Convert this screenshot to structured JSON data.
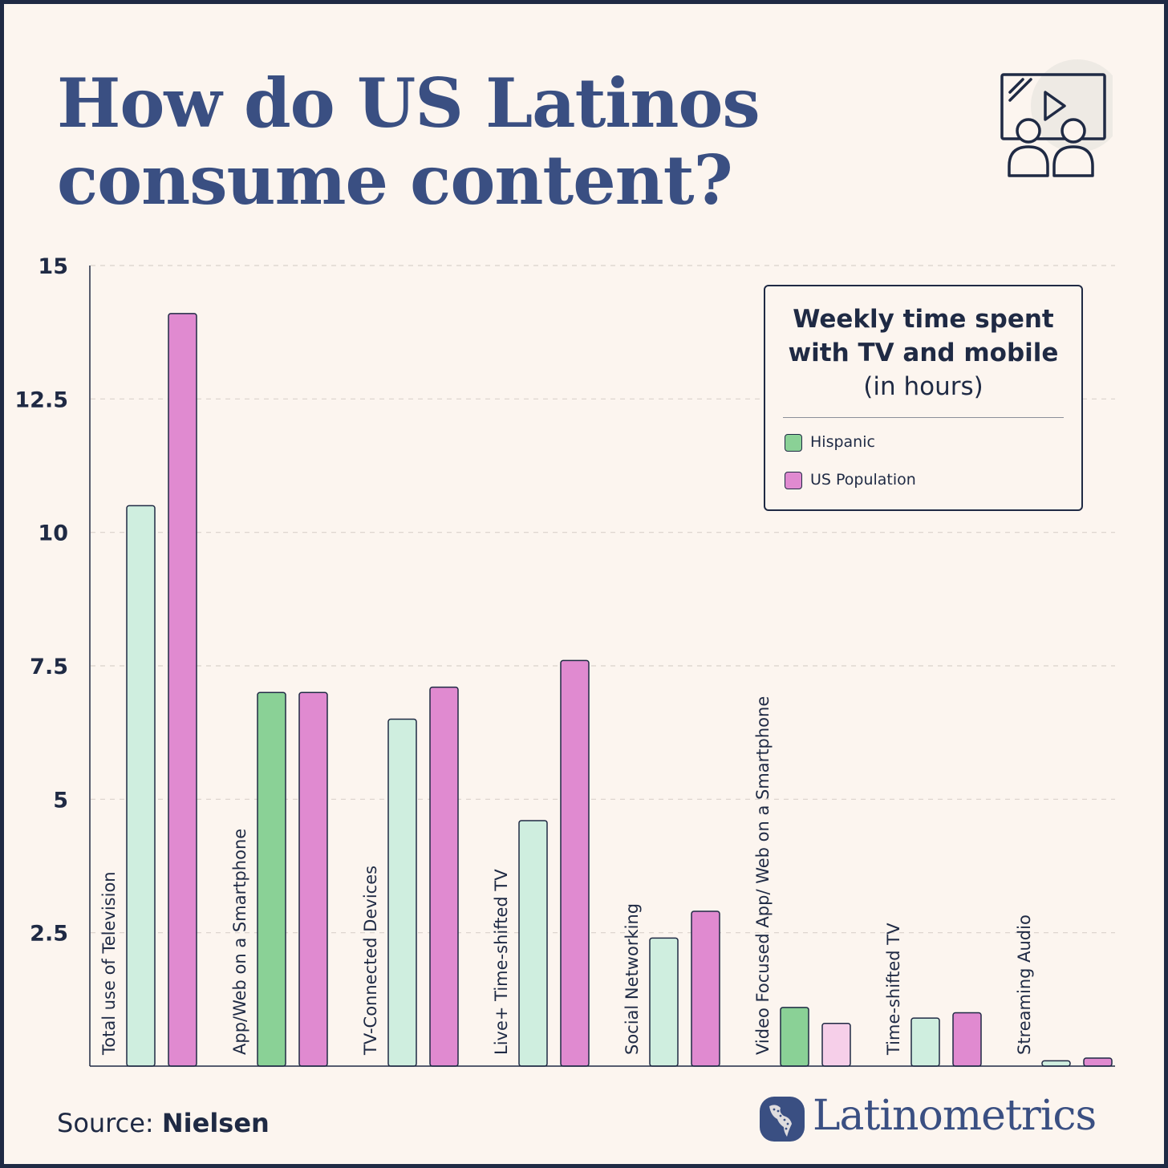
{
  "title": {
    "line1": "How do US Latinos",
    "line2": "consume content?"
  },
  "legend": {
    "title_line1": "Weekly time spent",
    "title_line2": "with TV and mobile",
    "subtitle": "(in hours)",
    "items": [
      {
        "label": "Hispanic",
        "color": "#8ad196"
      },
      {
        "label": "US Population",
        "color": "#e08ad0"
      }
    ]
  },
  "source": {
    "prefix": "Source: ",
    "name": "Nielsen"
  },
  "brand": {
    "name": "Latinometrics",
    "logo_icon": "americas-map-logo-icon"
  },
  "header_icon": "video-audience-icon",
  "chart_data": {
    "type": "bar",
    "categories": [
      "Total use of Television",
      "App/Web on a Smartphone",
      "TV-Connected Devices",
      "Live+ Time-shifted TV",
      "Social Networking",
      "Video Focused App/ Web on a Smartphone",
      "Time-shifted TV",
      "Streaming Audio"
    ],
    "series": [
      {
        "name": "Hispanic",
        "values": [
          10.5,
          7.0,
          6.5,
          4.6,
          2.4,
          1.1,
          0.9,
          0.1
        ],
        "colors": [
          "#cfeedf",
          "#8ad196",
          "#cfeedf",
          "#cfeedf",
          "#cfeedf",
          "#8ad196",
          "#cfeedf",
          "#cfeedf"
        ]
      },
      {
        "name": "US Population",
        "values": [
          14.1,
          7.0,
          7.1,
          7.6,
          2.9,
          0.8,
          1.0,
          0.15
        ],
        "colors": [
          "#e08ad0",
          "#e08ad0",
          "#e08ad0",
          "#e08ad0",
          "#e08ad0",
          "#f6cfe9",
          "#e08ad0",
          "#e08ad0"
        ]
      }
    ],
    "y_ticks": [
      "15",
      "12.5",
      "10",
      "7.5",
      "5",
      "2.5"
    ],
    "ylim": [
      0,
      15
    ],
    "grid": true,
    "legend_position": "top-right"
  }
}
